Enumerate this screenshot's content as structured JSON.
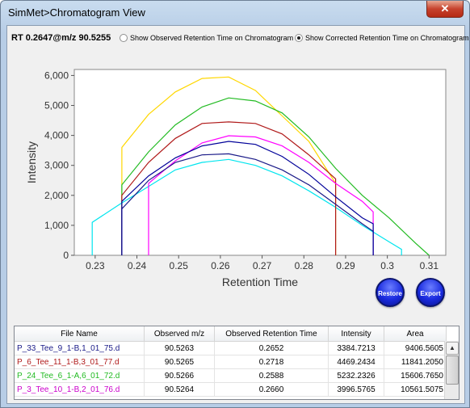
{
  "window": {
    "title": "SimMet>Chromatogram View",
    "close_glyph": "✕"
  },
  "toolbar": {
    "rt_label": "RT 0.2647@m/z 90.5255",
    "option_observed": "Show Observed Retention Time on Chromatogram",
    "option_corrected": "Show Corrected Retention Time on Chromatogram",
    "selected_option": "corrected"
  },
  "buttons": {
    "restore": "Restore",
    "export": "Export"
  },
  "chart_data": {
    "type": "line",
    "xlabel": "Retention Time",
    "ylabel": "Intensity",
    "xlim": [
      0.225,
      0.314
    ],
    "ylim": [
      0,
      6200
    ],
    "xticks": [
      "0.23",
      "0.24",
      "0.25",
      "0.26",
      "0.27",
      "0.28",
      "0.29",
      "0.3",
      "0.31"
    ],
    "yticks": [
      "0",
      "1,000",
      "2,000",
      "3,000",
      "4,000",
      "5,000",
      "6,000"
    ],
    "grid": false,
    "series": [
      {
        "color": "#00e5ee",
        "x": [
          0.2293,
          0.2293,
          0.2364,
          0.2428,
          0.2492,
          0.2556,
          0.262,
          0.2684,
          0.2748,
          0.2812,
          0.2876,
          0.294,
          0.3004,
          0.3034,
          0.3034
        ],
        "y": [
          0,
          1100,
          1750,
          2300,
          2850,
          3100,
          3200,
          3000,
          2650,
          2150,
          1600,
          1000,
          450,
          200,
          0
        ]
      },
      {
        "color": "#ffd700",
        "x": [
          0.2364,
          0.2364,
          0.2428,
          0.2492,
          0.2556,
          0.262,
          0.2684,
          0.2748,
          0.2812,
          0.2876,
          0.2876
        ],
        "y": [
          0,
          3600,
          4700,
          5450,
          5900,
          5950,
          5500,
          4650,
          3800,
          2400,
          0
        ]
      },
      {
        "color": "#22bb22",
        "x": [
          0.2364,
          0.2364,
          0.2428,
          0.2492,
          0.2556,
          0.262,
          0.2684,
          0.2748,
          0.2812,
          0.2876,
          0.294,
          0.3004,
          0.3068,
          0.31
        ],
        "y": [
          0,
          2350,
          3450,
          4350,
          4950,
          5250,
          5150,
          4750,
          3950,
          2900,
          2000,
          1250,
          400,
          0
        ]
      },
      {
        "color": "#b01a1a",
        "x": [
          0.2364,
          0.2364,
          0.2428,
          0.2492,
          0.2556,
          0.262,
          0.2684,
          0.2748,
          0.2812,
          0.2876,
          0.2876
        ],
        "y": [
          0,
          2000,
          3100,
          3900,
          4400,
          4450,
          4400,
          4050,
          3350,
          2550,
          0
        ]
      },
      {
        "color": "#ff00ff",
        "x": [
          0.2428,
          0.2428,
          0.2492,
          0.2556,
          0.262,
          0.2684,
          0.2748,
          0.2812,
          0.2876,
          0.294,
          0.2966,
          0.2966
        ],
        "y": [
          0,
          2400,
          3150,
          3750,
          3990,
          3950,
          3650,
          3100,
          2400,
          1800,
          1450,
          0
        ]
      },
      {
        "color": "#1a1a88",
        "x": [
          0.2364,
          0.2364,
          0.2428,
          0.2492,
          0.2556,
          0.262,
          0.2684,
          0.2748,
          0.2812,
          0.2876,
          0.294,
          0.2966,
          0.2966
        ],
        "y": [
          0,
          1550,
          2500,
          3100,
          3350,
          3385,
          3200,
          2850,
          2350,
          1700,
          1050,
          800,
          0
        ]
      },
      {
        "color": "#000099",
        "x": [
          0.2364,
          0.2364,
          0.2428,
          0.2492,
          0.2556,
          0.262,
          0.2684,
          0.2748,
          0.2812,
          0.2876,
          0.294,
          0.2966,
          0.2966
        ],
        "y": [
          0,
          1800,
          2650,
          3250,
          3650,
          3800,
          3700,
          3300,
          2700,
          1950,
          1250,
          1050,
          0
        ]
      }
    ],
    "plot_background": "#ffffff"
  },
  "table": {
    "columns": [
      "File Name",
      "Observed m/z",
      "Observed Retention Time",
      "Intensity",
      "Area"
    ],
    "rows": [
      {
        "file": "P_33_Tee_9_1-B,1_01_75.d",
        "mz": "90.5263",
        "rt": "0.2652",
        "intensity": "3384.7213",
        "area": "9406.5605",
        "color": "#1a1a88"
      },
      {
        "file": "P_6_Tee_11_1-B,3_01_77.d",
        "mz": "90.5265",
        "rt": "0.2718",
        "intensity": "4469.2434",
        "area": "11841.2050",
        "color": "#b01a1a"
      },
      {
        "file": "P_24_Tee_6_1-A,6_01_72.d",
        "mz": "90.5266",
        "rt": "0.2588",
        "intensity": "5232.2326",
        "area": "15606.7650",
        "color": "#22bb22"
      },
      {
        "file": "P_3_Tee_10_1-B,2_01_76.d",
        "mz": "90.5264",
        "rt": "0.2660",
        "intensity": "3996.5765",
        "area": "10561.5075",
        "color": "#cc00cc"
      }
    ]
  },
  "icons": {
    "scroll_up": "up-arrow-icon"
  }
}
